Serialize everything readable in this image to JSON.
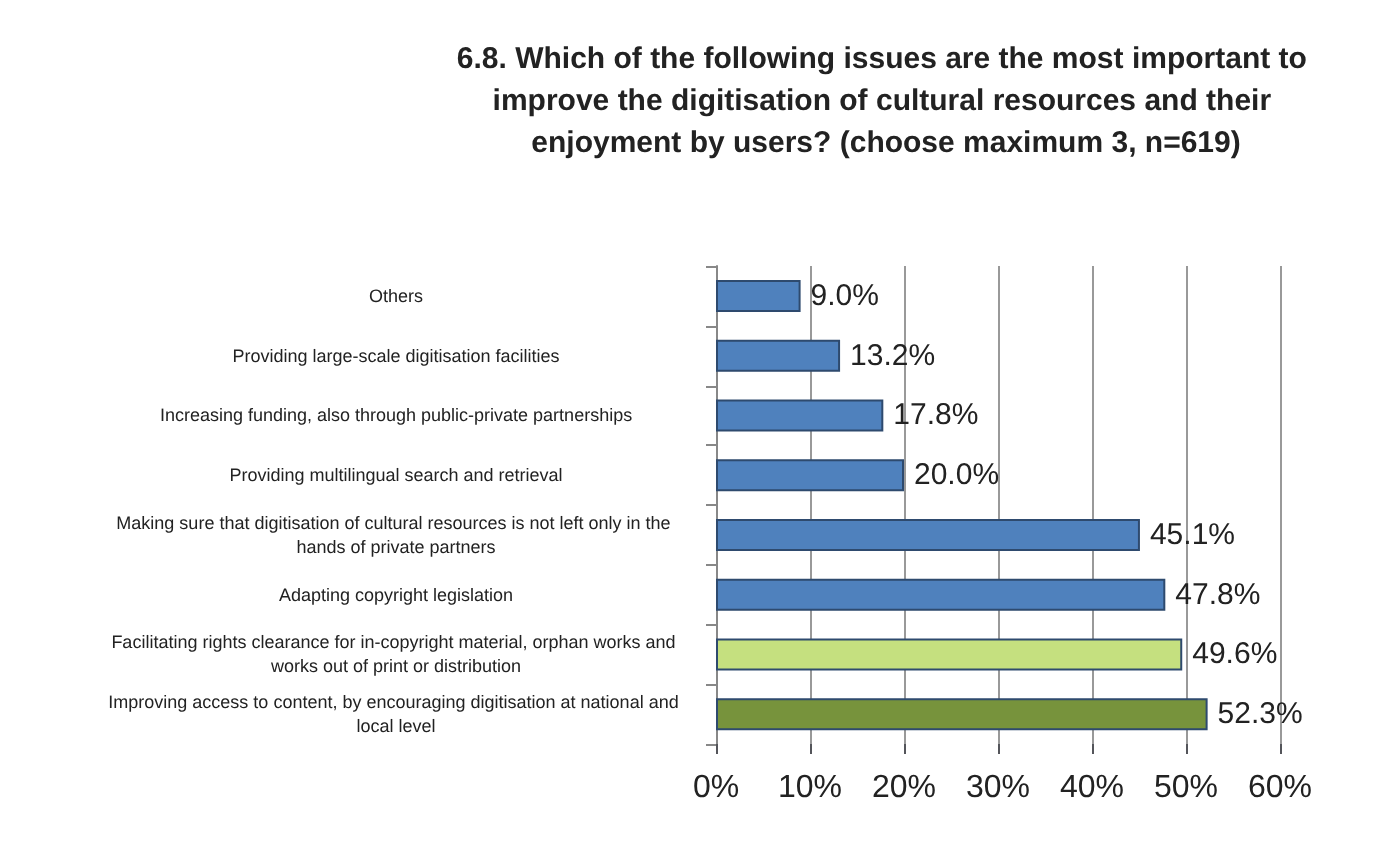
{
  "chart_data": {
    "type": "bar",
    "orientation": "horizontal",
    "title": "6.8. Which of the following issues are the most important to improve the digitisation of cultural resources and their enjoyment by users? (choose maximum 3, n=619)",
    "categories": [
      "Others",
      "Providing large-scale digitisation facilities",
      "Increasing funding, also through public-private partnerships",
      "Providing multilingual search and retrieval",
      "Making sure that digitisation of cultural resources is not left only in the hands of private partners",
      "Adapting copyright legislation",
      "Facilitating rights clearance for in-copyright material, orphan works and works out of print or distribution",
      "Improving access to content, by encouraging digitisation at national and local level"
    ],
    "values": [
      9.0,
      13.2,
      17.8,
      20.0,
      45.1,
      47.8,
      49.6,
      52.3
    ],
    "value_labels": [
      "9.0%",
      "13.2%",
      "17.8%",
      "20.0%",
      "45.1%",
      "47.8%",
      "49.6%",
      "52.3%"
    ],
    "colors": [
      "#4f81bd",
      "#4f81bd",
      "#4f81bd",
      "#4f81bd",
      "#4f81bd",
      "#4f81bd",
      "#c5e07f",
      "#77933c"
    ],
    "xlim": [
      0,
      60
    ],
    "xticks": [
      {
        "value": 0,
        "label": "0%"
      },
      {
        "value": 10,
        "label": "10%"
      },
      {
        "value": 20,
        "label": "20%"
      },
      {
        "value": 30,
        "label": "30%"
      },
      {
        "value": 40,
        "label": "40%"
      },
      {
        "value": 50,
        "label": "50%"
      },
      {
        "value": 60,
        "label": "60%"
      }
    ],
    "grid": "x"
  }
}
